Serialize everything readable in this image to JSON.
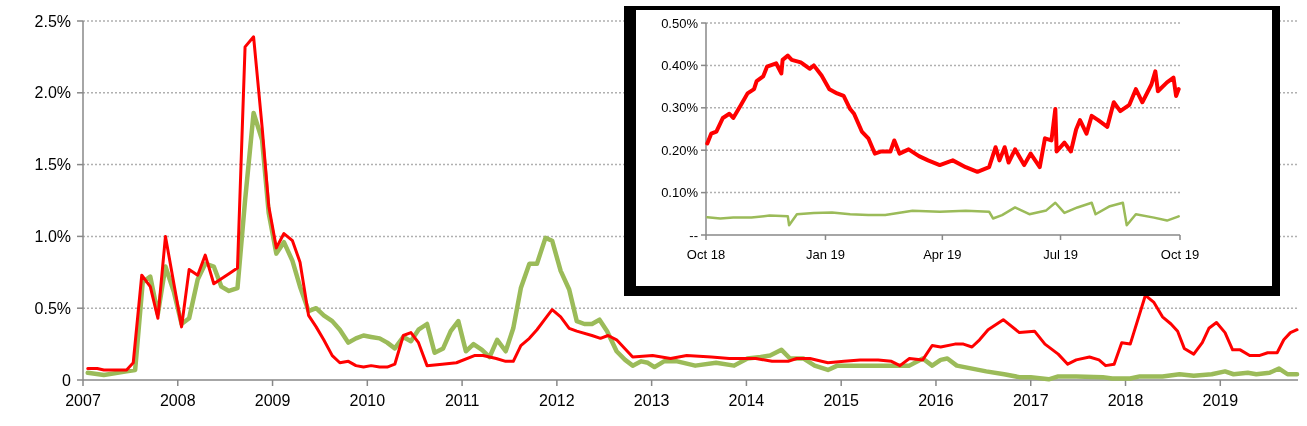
{
  "chart_data": [
    {
      "type": "line",
      "xlim": [
        2007,
        2019.82
      ],
      "xticks": [
        2007,
        2008,
        2009,
        2010,
        2011,
        2012,
        2013,
        2014,
        2015,
        2016,
        2017,
        2018,
        2019
      ],
      "ylim": [
        0,
        2.5
      ],
      "yticks": [
        {
          "value": 0,
          "label": "0"
        },
        {
          "value": 0.5,
          "label": "0.5%"
        },
        {
          "value": 1,
          "label": "1.0%"
        },
        {
          "value": 1.5,
          "label": "1.5%"
        },
        {
          "value": 2,
          "label": "2.0%"
        },
        {
          "value": 2.5,
          "label": "2.5%"
        }
      ],
      "grid": "y",
      "marker": "none",
      "line_style": "solid",
      "series": [
        {
          "color": "#9bbb59",
          "x": [
            2007.05,
            2007.22,
            2007.46,
            2007.55,
            2007.63,
            2007.71,
            2007.79,
            2007.87,
            2007.96,
            2008.04,
            2008.12,
            2008.21,
            2008.29,
            2008.38,
            2008.46,
            2008.54,
            2008.63,
            2008.71,
            2008.8,
            2008.89,
            2008.96,
            2009.04,
            2009.12,
            2009.21,
            2009.29,
            2009.38,
            2009.46,
            2009.54,
            2009.63,
            2009.71,
            2009.8,
            2009.88,
            2009.96,
            2010.04,
            2010.13,
            2010.21,
            2010.29,
            2010.38,
            2010.46,
            2010.54,
            2010.63,
            2010.71,
            2010.8,
            2010.88,
            2010.96,
            2011.04,
            2011.12,
            2011.21,
            2011.29,
            2011.37,
            2011.46,
            2011.54,
            2011.62,
            2011.71,
            2011.79,
            2011.88,
            2011.95,
            2012.04,
            2012.13,
            2012.21,
            2012.29,
            2012.37,
            2012.45,
            2012.53,
            2012.63,
            2012.72,
            2012.8,
            2012.89,
            2012.96,
            2013.03,
            2013.13,
            2013.27,
            2013.46,
            2013.68,
            2013.87,
            2014.01,
            2014.15,
            2014.25,
            2014.37,
            2014.46,
            2014.6,
            2014.72,
            2014.86,
            2014.96,
            2015.1,
            2015.29,
            2015.53,
            2015.72,
            2015.86,
            2015.96,
            2016.05,
            2016.12,
            2016.22,
            2016.53,
            2016.72,
            2016.88,
            2017.0,
            2017.19,
            2017.29,
            2017.48,
            2017.76,
            2017.86,
            2018.05,
            2018.15,
            2018.39,
            2018.57,
            2018.72,
            2018.91,
            2019.05,
            2019.14,
            2019.29,
            2019.38,
            2019.52,
            2019.62,
            2019.71,
            2019.81
          ],
          "values": [
            0.05,
            0.035,
            0.06,
            0.07,
            0.68,
            0.72,
            0.46,
            0.79,
            0.61,
            0.39,
            0.43,
            0.7,
            0.81,
            0.79,
            0.65,
            0.62,
            0.64,
            1.25,
            1.86,
            1.67,
            1.16,
            0.88,
            0.96,
            0.83,
            0.65,
            0.48,
            0.5,
            0.45,
            0.41,
            0.35,
            0.26,
            0.29,
            0.31,
            0.3,
            0.29,
            0.26,
            0.22,
            0.3,
            0.27,
            0.35,
            0.39,
            0.19,
            0.22,
            0.34,
            0.41,
            0.2,
            0.25,
            0.21,
            0.16,
            0.28,
            0.2,
            0.36,
            0.64,
            0.81,
            0.81,
            0.99,
            0.97,
            0.76,
            0.63,
            0.41,
            0.39,
            0.39,
            0.42,
            0.34,
            0.2,
            0.14,
            0.1,
            0.13,
            0.12,
            0.09,
            0.13,
            0.13,
            0.1,
            0.12,
            0.1,
            0.15,
            0.16,
            0.17,
            0.21,
            0.15,
            0.15,
            0.1,
            0.07,
            0.1,
            0.1,
            0.1,
            0.1,
            0.1,
            0.15,
            0.1,
            0.14,
            0.15,
            0.1,
            0.06,
            0.04,
            0.02,
            0.02,
            0.005,
            0.025,
            0.025,
            0.02,
            0.01,
            0.01,
            0.025,
            0.025,
            0.04,
            0.03,
            0.04,
            0.06,
            0.04,
            0.05,
            0.04,
            0.05,
            0.08,
            0.04,
            0.04
          ]
        },
        {
          "color": "#ff0000",
          "x": [
            2007.05,
            2007.15,
            2007.22,
            2007.46,
            2007.53,
            2007.62,
            2007.71,
            2007.79,
            2007.87,
            2008.04,
            2008.12,
            2008.21,
            2008.29,
            2008.38,
            2008.54,
            2008.63,
            2008.71,
            2008.8,
            2008.89,
            2008.96,
            2009.04,
            2009.12,
            2009.21,
            2009.29,
            2009.38,
            2009.46,
            2009.54,
            2009.63,
            2009.71,
            2009.8,
            2009.88,
            2009.96,
            2010.04,
            2010.13,
            2010.21,
            2010.29,
            2010.38,
            2010.46,
            2010.54,
            2010.63,
            2010.79,
            2010.94,
            2011.13,
            2011.22,
            2011.36,
            2011.46,
            2011.54,
            2011.62,
            2011.71,
            2011.79,
            2011.87,
            2011.95,
            2012.04,
            2012.13,
            2012.21,
            2012.37,
            2012.46,
            2012.54,
            2012.63,
            2012.8,
            2013.01,
            2013.2,
            2013.37,
            2013.63,
            2013.82,
            2014.1,
            2014.27,
            2014.44,
            2014.53,
            2014.67,
            2014.86,
            2015.03,
            2015.2,
            2015.39,
            2015.53,
            2015.62,
            2015.72,
            2015.86,
            2015.96,
            2016.05,
            2016.2,
            2016.29,
            2016.38,
            2016.46,
            2016.55,
            2016.71,
            2016.88,
            2017.04,
            2017.15,
            2017.29,
            2017.39,
            2017.48,
            2017.62,
            2017.72,
            2017.79,
            2017.88,
            2017.96,
            2018.05,
            2018.21,
            2018.3,
            2018.39,
            2018.48,
            2018.55,
            2018.62,
            2018.72,
            2018.81,
            2018.88,
            2018.96,
            2019.05,
            2019.13,
            2019.21,
            2019.31,
            2019.41,
            2019.5,
            2019.6,
            2019.67,
            2019.74,
            2019.81
          ],
          "values": [
            0.08,
            0.08,
            0.07,
            0.07,
            0.12,
            0.73,
            0.65,
            0.43,
            1.0,
            0.37,
            0.77,
            0.73,
            0.87,
            0.67,
            0.74,
            0.78,
            2.32,
            2.39,
            1.76,
            1.21,
            0.92,
            1.02,
            0.97,
            0.82,
            0.45,
            0.37,
            0.28,
            0.17,
            0.12,
            0.13,
            0.1,
            0.09,
            0.1,
            0.09,
            0.09,
            0.11,
            0.31,
            0.33,
            0.26,
            0.1,
            0.11,
            0.12,
            0.17,
            0.17,
            0.15,
            0.13,
            0.13,
            0.24,
            0.29,
            0.35,
            0.42,
            0.49,
            0.44,
            0.36,
            0.34,
            0.31,
            0.29,
            0.31,
            0.28,
            0.16,
            0.17,
            0.15,
            0.17,
            0.16,
            0.15,
            0.15,
            0.13,
            0.13,
            0.15,
            0.15,
            0.12,
            0.13,
            0.14,
            0.14,
            0.13,
            0.1,
            0.15,
            0.14,
            0.24,
            0.23,
            0.25,
            0.25,
            0.23,
            0.28,
            0.35,
            0.42,
            0.33,
            0.34,
            0.25,
            0.18,
            0.11,
            0.14,
            0.16,
            0.14,
            0.1,
            0.11,
            0.26,
            0.25,
            0.59,
            0.54,
            0.44,
            0.39,
            0.34,
            0.22,
            0.18,
            0.26,
            0.36,
            0.4,
            0.33,
            0.21,
            0.21,
            0.17,
            0.17,
            0.19,
            0.19,
            0.28,
            0.33,
            0.35
          ]
        }
      ]
    },
    {
      "type": "line",
      "xlim": [
        "2018-10-01",
        "2019-10-01"
      ],
      "xticks": [
        {
          "value": "2018-10-01",
          "label": "Oct 18"
        },
        {
          "value": "2019-01-01",
          "label": "Jan 19"
        },
        {
          "value": "2019-04-01",
          "label": "Apr 19"
        },
        {
          "value": "2019-07-01",
          "label": "Jul 19"
        },
        {
          "value": "2019-10-01",
          "label": "Oct 19"
        }
      ],
      "ylim": [
        0,
        0.5
      ],
      "yticks": [
        {
          "value": 0,
          "label": "--"
        },
        {
          "value": 0.1,
          "label": "0.10%"
        },
        {
          "value": 0.2,
          "label": "0.20%"
        },
        {
          "value": 0.3,
          "label": "0.30%"
        },
        {
          "value": 0.4,
          "label": "0.40%"
        },
        {
          "value": 0.5,
          "label": "0.50%"
        }
      ],
      "grid": "y",
      "marker": "none",
      "line_style": "solid",
      "series": [
        {
          "color": "#ff0000",
          "x": [
            "2018-10-02",
            "2018-10-05",
            "2018-10-09",
            "2018-10-14",
            "2018-10-19",
            "2018-10-22",
            "2018-10-28",
            "2018-11-02",
            "2018-11-07",
            "2018-11-09",
            "2018-11-14",
            "2018-11-17",
            "2018-11-24",
            "2018-11-28",
            "2018-11-29",
            "2018-12-03",
            "2018-12-06",
            "2018-12-13",
            "2018-12-20",
            "2018-12-23",
            "2018-12-29",
            "2019-01-04",
            "2019-01-10",
            "2019-01-15",
            "2019-01-20",
            "2019-01-23",
            "2019-01-29",
            "2019-02-03",
            "2019-02-08",
            "2019-02-13",
            "2019-02-20",
            "2019-02-23",
            "2019-02-27",
            "2019-03-06",
            "2019-03-14",
            "2019-03-21",
            "2019-03-30",
            "2019-04-09",
            "2019-04-19",
            "2019-04-28",
            "2019-05-07",
            "2019-05-12",
            "2019-05-15",
            "2019-05-19",
            "2019-05-22",
            "2019-05-27",
            "2019-06-03",
            "2019-06-08",
            "2019-06-15",
            "2019-06-19",
            "2019-06-24",
            "2019-06-27",
            "2019-06-28",
            "2019-07-04",
            "2019-07-09",
            "2019-07-13",
            "2019-07-16",
            "2019-07-21",
            "2019-07-25",
            "2019-07-30",
            "2019-08-06",
            "2019-08-11",
            "2019-08-16",
            "2019-08-23",
            "2019-08-28",
            "2019-09-02",
            "2019-09-09",
            "2019-09-12",
            "2019-09-14",
            "2019-09-21",
            "2019-09-26",
            "2019-09-28",
            "2019-09-30"
          ],
          "values": [
            0.216,
            0.239,
            0.244,
            0.276,
            0.286,
            0.276,
            0.307,
            0.334,
            0.344,
            0.363,
            0.374,
            0.397,
            0.405,
            0.381,
            0.413,
            0.423,
            0.413,
            0.407,
            0.392,
            0.4,
            0.376,
            0.344,
            0.334,
            0.328,
            0.297,
            0.286,
            0.244,
            0.228,
            0.192,
            0.197,
            0.197,
            0.223,
            0.192,
            0.202,
            0.186,
            0.176,
            0.165,
            0.176,
            0.16,
            0.149,
            0.16,
            0.207,
            0.176,
            0.207,
            0.171,
            0.202,
            0.165,
            0.192,
            0.16,
            0.228,
            0.223,
            0.297,
            0.197,
            0.218,
            0.197,
            0.249,
            0.271,
            0.239,
            0.281,
            0.271,
            0.255,
            0.313,
            0.292,
            0.307,
            0.344,
            0.313,
            0.355,
            0.386,
            0.339,
            0.36,
            0.371,
            0.328,
            0.344
          ]
        },
        {
          "color": "#9bbb59",
          "x": [
            "2018-10-02",
            "2018-10-12",
            "2018-10-22",
            "2018-11-05",
            "2018-11-19",
            "2018-12-03",
            "2018-12-04",
            "2018-12-10",
            "2018-12-23",
            "2019-01-06",
            "2019-01-20",
            "2019-02-03",
            "2019-02-16",
            "2019-03-09",
            "2019-03-30",
            "2019-04-19",
            "2019-05-07",
            "2019-05-10",
            "2019-05-17",
            "2019-05-27",
            "2019-06-07",
            "2019-06-20",
            "2019-06-27",
            "2019-07-04",
            "2019-07-14",
            "2019-07-25",
            "2019-07-28",
            "2019-08-08",
            "2019-08-18",
            "2019-08-21",
            "2019-08-28",
            "2019-09-11",
            "2019-09-21",
            "2019-09-30"
          ],
          "values": [
            0.042,
            0.039,
            0.041,
            0.041,
            0.046,
            0.044,
            0.023,
            0.049,
            0.052,
            0.053,
            0.049,
            0.047,
            0.047,
            0.057,
            0.055,
            0.057,
            0.055,
            0.039,
            0.047,
            0.065,
            0.049,
            0.058,
            0.076,
            0.052,
            0.065,
            0.076,
            0.049,
            0.068,
            0.076,
            0.023,
            0.049,
            0.041,
            0.034,
            0.044
          ]
        }
      ]
    }
  ]
}
